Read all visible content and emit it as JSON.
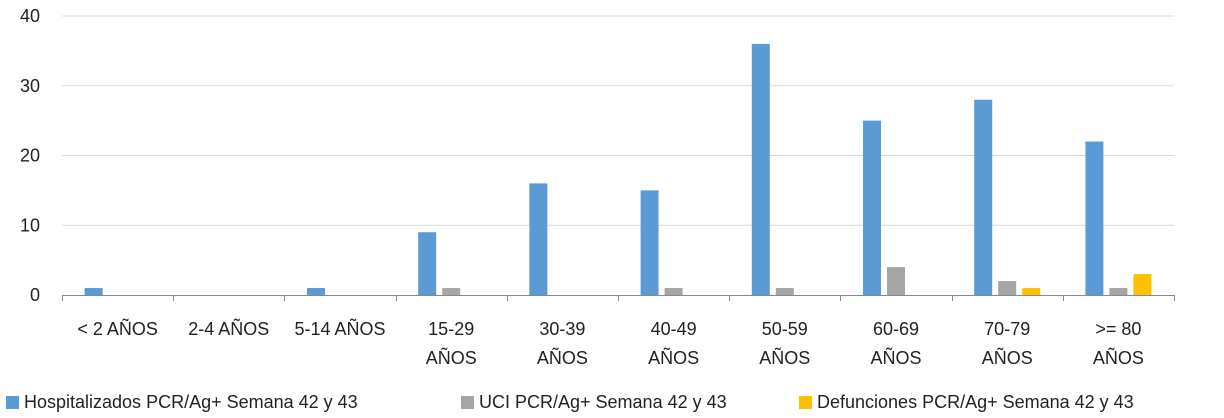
{
  "chart_data": {
    "type": "bar",
    "categories": [
      [
        "< 2 AÑOS"
      ],
      [
        "2-4 AÑOS"
      ],
      [
        "5-14 AÑOS"
      ],
      [
        "15-29",
        "AÑOS"
      ],
      [
        "30-39",
        "AÑOS"
      ],
      [
        "40-49",
        "AÑOS"
      ],
      [
        "50-59",
        "AÑOS"
      ],
      [
        "60-69",
        "AÑOS"
      ],
      [
        "70-79",
        "AÑOS"
      ],
      [
        ">= 80",
        "AÑOS"
      ]
    ],
    "series": [
      {
        "name": "Hospitalizados PCR/Ag+ Semana 42 y 43",
        "color": "#5b9bd5",
        "values": [
          1,
          0,
          1,
          9,
          16,
          15,
          36,
          25,
          28,
          22
        ]
      },
      {
        "name": "UCI PCR/Ag+ Semana 42 y 43",
        "color": "#a5a5a5",
        "values": [
          0,
          0,
          0,
          1,
          0,
          1,
          1,
          4,
          2,
          1
        ]
      },
      {
        "name": "Defunciones PCR/Ag+ Semana 42 y 43",
        "color": "#ffc000",
        "values": [
          0,
          0,
          0,
          0,
          0,
          0,
          0,
          0,
          1,
          3
        ]
      }
    ],
    "ylim": [
      0,
      40
    ],
    "yticks": [
      0,
      10,
      20,
      30,
      40
    ],
    "grid": true,
    "legend_position": "bottom",
    "title": "",
    "xlabel": "",
    "ylabel": ""
  }
}
